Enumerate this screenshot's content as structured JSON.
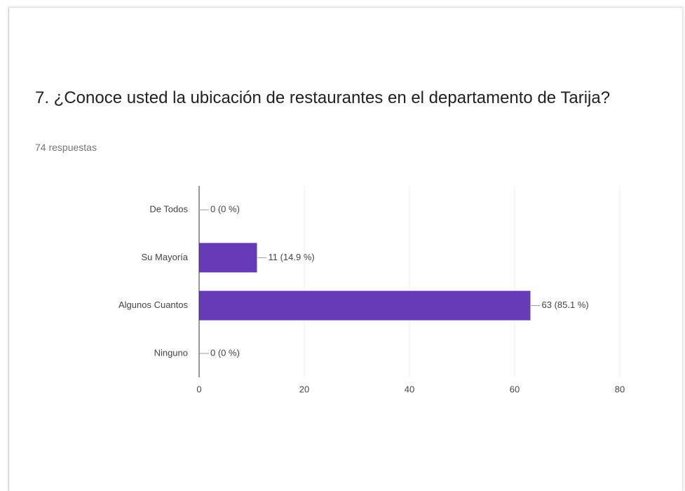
{
  "chart_data": {
    "type": "bar",
    "orientation": "horizontal",
    "title": "7. ¿Conoce usted la ubicación de restaurantes en el departamento de Tarija?",
    "subtitle": "74 respuestas",
    "categories": [
      "De Todos",
      "Su Mayoría",
      "Algunos Cuantos",
      "Ninguno"
    ],
    "values": [
      0,
      11,
      63,
      0
    ],
    "value_labels": [
      "0 (0 %)",
      "11 (14.9 %)",
      "63 (85.1 %)",
      "0 (0 %)"
    ],
    "color": "#673ab7",
    "xlim": [
      0,
      80
    ],
    "xticks": [
      0,
      20,
      40,
      60,
      80
    ],
    "grid": true
  }
}
